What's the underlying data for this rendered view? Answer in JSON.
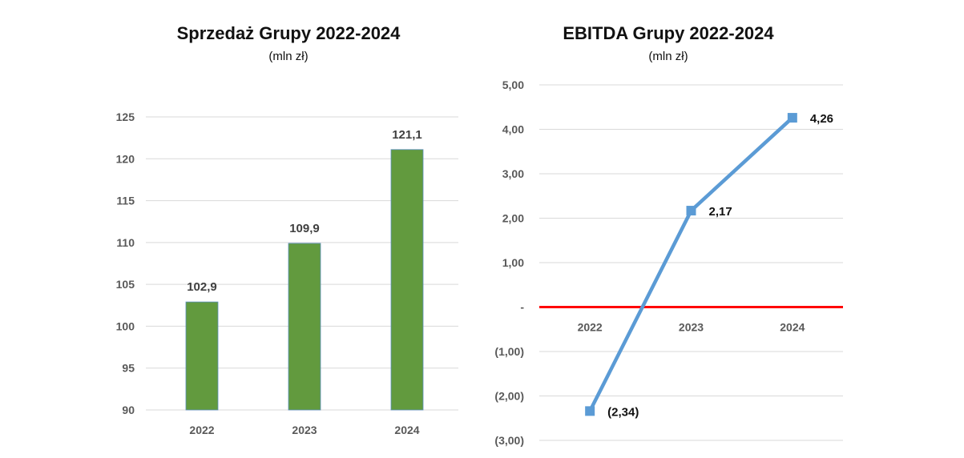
{
  "chart_data": [
    {
      "type": "bar",
      "title": "Sprzedaż Grupy 2022-2024",
      "subtitle": "(mln zł)",
      "categories": [
        "2022",
        "2023",
        "2024"
      ],
      "values": [
        102.9,
        109.9,
        121.1
      ],
      "value_labels": [
        "102,9",
        "109,9",
        "121,1"
      ],
      "yticks": [
        90,
        95,
        100,
        105,
        110,
        115,
        120,
        125
      ],
      "ytick_labels": [
        "90",
        "95",
        "100",
        "105",
        "110",
        "115",
        "120",
        "125"
      ],
      "ylim": [
        90,
        125
      ],
      "grid": true,
      "bar_color": "#629a3e"
    },
    {
      "type": "line",
      "title": "EBITDA Grupy 2022-2024",
      "subtitle": "(mln zł)",
      "categories": [
        "2022",
        "2023",
        "2024"
      ],
      "values": [
        -2.34,
        2.17,
        4.26
      ],
      "value_labels": [
        "(2,34)",
        "2,17",
        "4,26"
      ],
      "yticks": [
        -3,
        -2,
        -1,
        0,
        1,
        2,
        3,
        4,
        5
      ],
      "ytick_labels": [
        "(3,00)",
        "(2,00)",
        "(1,00)",
        "-",
        "1,00",
        "2,00",
        "3,00",
        "4,00",
        "5,00"
      ],
      "ylim": [
        -3,
        5
      ],
      "grid": true,
      "line_color": "#5b9bd5",
      "zero_line_color": "#ff0000"
    }
  ]
}
